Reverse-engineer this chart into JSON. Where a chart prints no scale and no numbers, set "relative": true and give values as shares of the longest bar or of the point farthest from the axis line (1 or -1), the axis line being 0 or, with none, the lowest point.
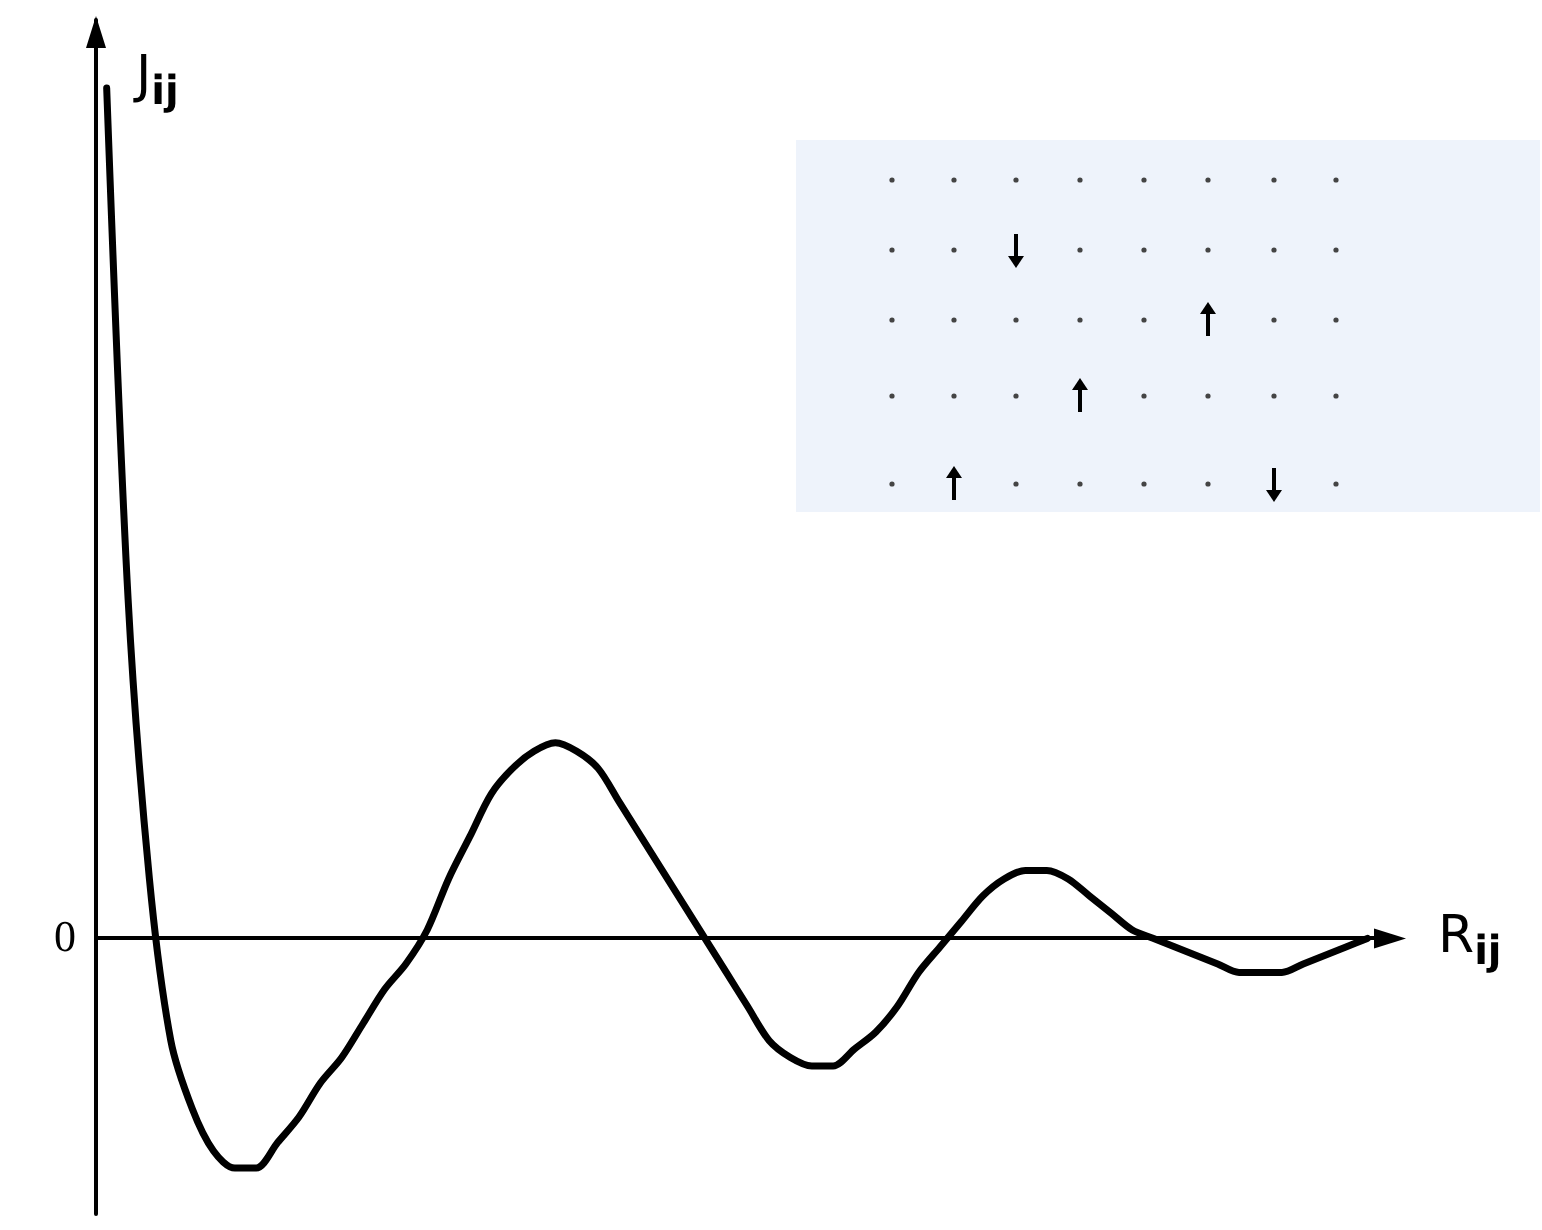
{
  "chart_data": {
    "type": "line",
    "relative": true,
    "xlabel": "R$_{ij}$",
    "ylabel": "J$_{ij}$",
    "color": "#000000",
    "marker": "none",
    "annotations": [
      "0"
    ],
    "categories": [
      null,
      null,
      null,
      null,
      null,
      null,
      null,
      null,
      null,
      null,
      null,
      null,
      null,
      null,
      null,
      null,
      null,
      null,
      null,
      null,
      null,
      null,
      null,
      null,
      null,
      null,
      null,
      null,
      null,
      null,
      null,
      null,
      null,
      null,
      null,
      null,
      null,
      null,
      null,
      null,
      null,
      null,
      null,
      null,
      null,
      null,
      null,
      null,
      null,
      null,
      null,
      null,
      null,
      null,
      null,
      null,
      null,
      null,
      null,
      null
    ],
    "values": [
      1.0,
      0.4,
      0.07,
      -0.12,
      -0.2,
      -0.25,
      -0.27,
      -0.27,
      -0.24,
      -0.21,
      -0.17,
      -0.14,
      -0.1,
      -0.06,
      -0.03,
      0.01,
      0.07,
      0.12,
      0.17,
      0.2,
      0.22,
      0.23,
      0.22,
      0.2,
      0.16,
      0.12,
      0.08,
      0.04,
      0,
      -0.04,
      -0.08,
      -0.12,
      -0.14,
      -0.15,
      -0.15,
      -0.13,
      -0.11,
      -0.08,
      -0.04,
      -0.01,
      0.02,
      0.05,
      0.07,
      0.08,
      0.08,
      0.07,
      0.05,
      0.03,
      0.01,
      0,
      -0.01,
      -0.02,
      -0.03,
      -0.04,
      -0.04,
      -0.04,
      -0.03,
      -0.02,
      -0.01,
      0
    ]
  }
}
